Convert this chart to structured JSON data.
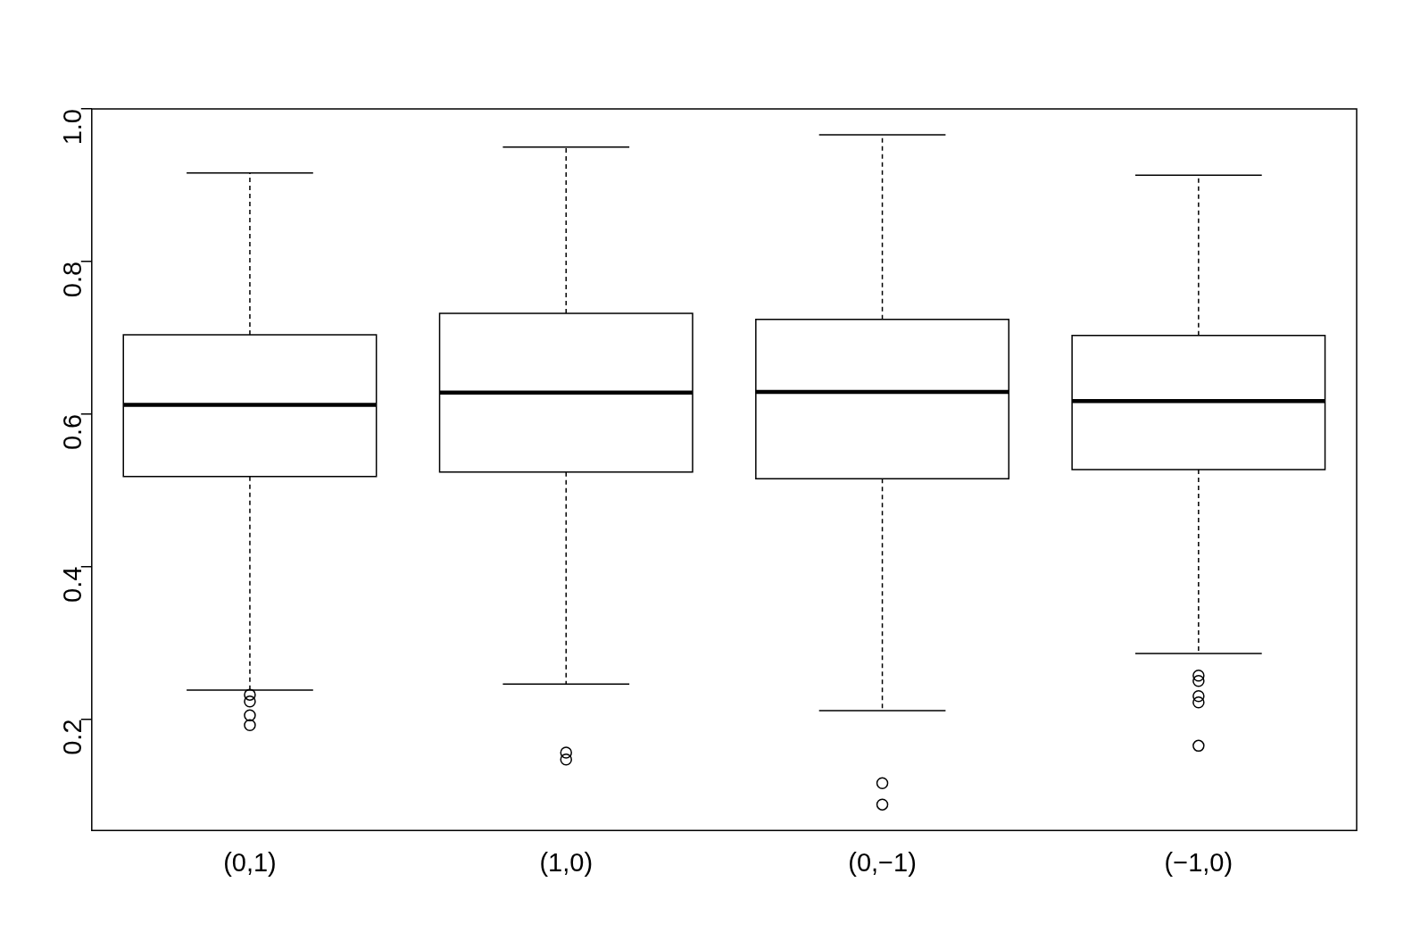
{
  "chart_data": {
    "type": "box",
    "categories": [
      "(0,1)",
      "(1,0)",
      "(0,−1)",
      "(−1,0)"
    ],
    "boxes": [
      {
        "low": 0.238,
        "q1": 0.518,
        "median": 0.612,
        "q3": 0.704,
        "high": 0.916,
        "outliers": [
          0.232,
          0.223,
          0.205,
          0.192
        ]
      },
      {
        "low": 0.246,
        "q1": 0.524,
        "median": 0.628,
        "q3": 0.732,
        "high": 0.95,
        "outliers": [
          0.156,
          0.147
        ]
      },
      {
        "low": 0.211,
        "q1": 0.515,
        "median": 0.629,
        "q3": 0.724,
        "high": 0.966,
        "outliers": [
          0.116,
          0.088
        ]
      },
      {
        "low": 0.286,
        "q1": 0.527,
        "median": 0.617,
        "q3": 0.703,
        "high": 0.913,
        "outliers": [
          0.257,
          0.25,
          0.23,
          0.222,
          0.165
        ]
      }
    ],
    "ylim": [
      0.054,
      1.0
    ],
    "yticks": [
      0.2,
      0.4,
      0.6,
      0.8,
      {
        "value": 1.0,
        "label": "1.0"
      }
    ],
    "grid": false,
    "legend": false,
    "marker": "circle"
  }
}
